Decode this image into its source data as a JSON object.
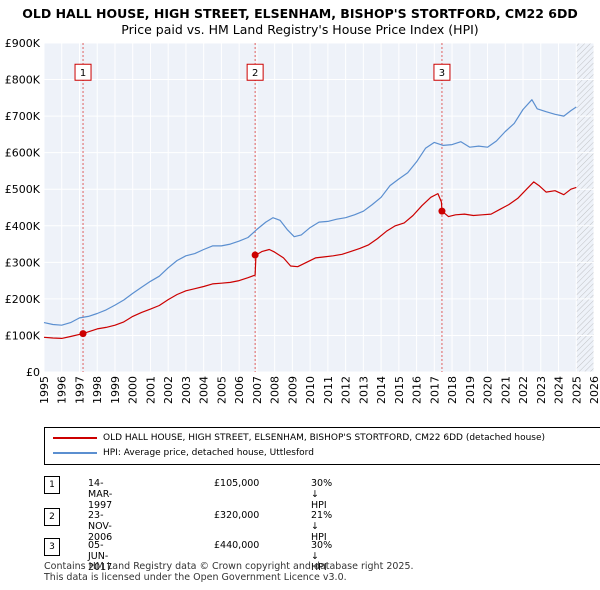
{
  "title_line1": "OLD HALL HOUSE, HIGH STREET, ELSENHAM, BISHOP'S STORTFORD, CM22 6DD",
  "title_line2": "Price paid vs. HM Land Registry's House Price Index (HPI)",
  "colors": {
    "property": "#cc0000",
    "hpi": "#5b8fd0",
    "grid": "#e6e6e6",
    "plot_bg": "#eef2f9",
    "sale_vline": "#e06060"
  },
  "chart_data": {
    "type": "line",
    "title": "Price paid vs. HM Land Registry's House Price Index (HPI)",
    "xlim": [
      1995,
      2026
    ],
    "ylim": [
      0,
      900000
    ],
    "x_ticks": [
      "1995",
      "1996",
      "1997",
      "1998",
      "1999",
      "2000",
      "2001",
      "2002",
      "2003",
      "2004",
      "2005",
      "2006",
      "2007",
      "2008",
      "2009",
      "2010",
      "2011",
      "2012",
      "2013",
      "2014",
      "2015",
      "2016",
      "2017",
      "2018",
      "2019",
      "2020",
      "2021",
      "2022",
      "2023",
      "2024",
      "2025",
      "2026"
    ],
    "y_ticks": [
      {
        "value": 0,
        "label": "£0"
      },
      {
        "value": 100000,
        "label": "£100K"
      },
      {
        "value": 200000,
        "label": "£200K"
      },
      {
        "value": 300000,
        "label": "£300K"
      },
      {
        "value": 400000,
        "label": "£400K"
      },
      {
        "value": 500000,
        "label": "£500K"
      },
      {
        "value": 600000,
        "label": "£600K"
      },
      {
        "value": 700000,
        "label": "£700K"
      },
      {
        "value": 800000,
        "label": "£800K"
      },
      {
        "value": 900000,
        "label": "£900K"
      }
    ],
    "grid": true,
    "series": [
      {
        "name": "OLD HALL HOUSE, HIGH STREET, ELSENHAM, BISHOP'S STORTFORD, CM22 6DD (detached house)",
        "color": "#cc0000",
        "points": [
          [
            1995.0,
            95000
          ],
          [
            1995.5,
            93000
          ],
          [
            1996.0,
            92000
          ],
          [
            1996.5,
            97000
          ],
          [
            1997.2,
            105000
          ],
          [
            1997.5,
            110000
          ],
          [
            1998.0,
            118000
          ],
          [
            1998.5,
            122000
          ],
          [
            1999.0,
            128000
          ],
          [
            1999.5,
            137000
          ],
          [
            2000.0,
            152000
          ],
          [
            2000.5,
            163000
          ],
          [
            2001.0,
            172000
          ],
          [
            2001.5,
            182000
          ],
          [
            2002.0,
            198000
          ],
          [
            2002.5,
            212000
          ],
          [
            2003.0,
            222000
          ],
          [
            2003.5,
            228000
          ],
          [
            2004.0,
            234000
          ],
          [
            2004.5,
            241000
          ],
          [
            2005.0,
            243000
          ],
          [
            2005.5,
            245000
          ],
          [
            2006.0,
            250000
          ],
          [
            2006.5,
            258000
          ],
          [
            2006.9,
            265000
          ],
          [
            2006.95,
            320000
          ],
          [
            2007.3,
            330000
          ],
          [
            2007.7,
            335000
          ],
          [
            2008.0,
            328000
          ],
          [
            2008.5,
            312000
          ],
          [
            2008.9,
            290000
          ],
          [
            2009.3,
            288000
          ],
          [
            2009.8,
            300000
          ],
          [
            2010.3,
            312000
          ],
          [
            2010.8,
            315000
          ],
          [
            2011.3,
            318000
          ],
          [
            2011.8,
            322000
          ],
          [
            2012.3,
            330000
          ],
          [
            2012.8,
            338000
          ],
          [
            2013.3,
            348000
          ],
          [
            2013.8,
            365000
          ],
          [
            2014.3,
            385000
          ],
          [
            2014.8,
            400000
          ],
          [
            2015.3,
            408000
          ],
          [
            2015.8,
            428000
          ],
          [
            2016.3,
            455000
          ],
          [
            2016.8,
            478000
          ],
          [
            2017.2,
            488000
          ],
          [
            2017.4,
            465000
          ],
          [
            2017.43,
            440000
          ],
          [
            2017.8,
            425000
          ],
          [
            2018.2,
            430000
          ],
          [
            2018.7,
            432000
          ],
          [
            2019.2,
            428000
          ],
          [
            2019.7,
            430000
          ],
          [
            2020.2,
            432000
          ],
          [
            2020.7,
            445000
          ],
          [
            2021.2,
            458000
          ],
          [
            2021.7,
            475000
          ],
          [
            2022.2,
            500000
          ],
          [
            2022.6,
            520000
          ],
          [
            2022.9,
            510000
          ],
          [
            2023.3,
            492000
          ],
          [
            2023.8,
            496000
          ],
          [
            2024.3,
            485000
          ],
          [
            2024.7,
            500000
          ],
          [
            2025.0,
            505000
          ]
        ]
      },
      {
        "name": "HPI: Average price, detached house, Uttlesford",
        "color": "#5b8fd0",
        "points": [
          [
            1995.0,
            135000
          ],
          [
            1995.5,
            130000
          ],
          [
            1996.0,
            128000
          ],
          [
            1996.5,
            135000
          ],
          [
            1997.0,
            148000
          ],
          [
            1997.5,
            152000
          ],
          [
            1998.0,
            160000
          ],
          [
            1998.5,
            170000
          ],
          [
            1999.0,
            183000
          ],
          [
            1999.5,
            197000
          ],
          [
            2000.0,
            215000
          ],
          [
            2000.5,
            232000
          ],
          [
            2001.0,
            248000
          ],
          [
            2001.5,
            262000
          ],
          [
            2002.0,
            285000
          ],
          [
            2002.5,
            305000
          ],
          [
            2003.0,
            318000
          ],
          [
            2003.5,
            324000
          ],
          [
            2004.0,
            335000
          ],
          [
            2004.5,
            345000
          ],
          [
            2005.0,
            345000
          ],
          [
            2005.5,
            350000
          ],
          [
            2006.0,
            358000
          ],
          [
            2006.5,
            368000
          ],
          [
            2007.0,
            390000
          ],
          [
            2007.5,
            410000
          ],
          [
            2007.9,
            422000
          ],
          [
            2008.3,
            415000
          ],
          [
            2008.7,
            390000
          ],
          [
            2009.1,
            370000
          ],
          [
            2009.5,
            375000
          ],
          [
            2010.0,
            395000
          ],
          [
            2010.5,
            410000
          ],
          [
            2011.0,
            412000
          ],
          [
            2011.5,
            418000
          ],
          [
            2012.0,
            422000
          ],
          [
            2012.5,
            430000
          ],
          [
            2013.0,
            440000
          ],
          [
            2013.5,
            458000
          ],
          [
            2014.0,
            478000
          ],
          [
            2014.5,
            510000
          ],
          [
            2015.0,
            528000
          ],
          [
            2015.5,
            545000
          ],
          [
            2016.0,
            575000
          ],
          [
            2016.5,
            612000
          ],
          [
            2017.0,
            628000
          ],
          [
            2017.5,
            620000
          ],
          [
            2018.0,
            622000
          ],
          [
            2018.5,
            630000
          ],
          [
            2019.0,
            615000
          ],
          [
            2019.5,
            618000
          ],
          [
            2020.0,
            615000
          ],
          [
            2020.5,
            632000
          ],
          [
            2021.0,
            658000
          ],
          [
            2021.5,
            680000
          ],
          [
            2022.0,
            718000
          ],
          [
            2022.5,
            745000
          ],
          [
            2022.8,
            720000
          ],
          [
            2023.3,
            712000
          ],
          [
            2023.8,
            705000
          ],
          [
            2024.3,
            700000
          ],
          [
            2024.7,
            715000
          ],
          [
            2025.0,
            725000
          ]
        ]
      }
    ],
    "sales": [
      {
        "label": "1",
        "x": 1997.2,
        "price": 105000
      },
      {
        "label": "2",
        "x": 2006.9,
        "price": 320000
      },
      {
        "label": "3",
        "x": 2017.43,
        "price": 440000
      }
    ],
    "future_hatch_from": 2025.0
  },
  "legend": {
    "property_label": "OLD HALL HOUSE, HIGH STREET, ELSENHAM, BISHOP'S STORTFORD, CM22 6DD (detached house)",
    "hpi_label": "HPI: Average price, detached house, Uttlesford"
  },
  "sales_table": [
    {
      "num": "1",
      "date": "14-MAR-1997",
      "price": "£105,000",
      "hpi": "30% ↓ HPI"
    },
    {
      "num": "2",
      "date": "23-NOV-2006",
      "price": "£320,000",
      "hpi": "21% ↓ HPI"
    },
    {
      "num": "3",
      "date": "05-JUN-2017",
      "price": "£440,000",
      "hpi": "30% ↓ HPI"
    }
  ],
  "footer": {
    "line1": "Contains HM Land Registry data © Crown copyright and database right 2025.",
    "line2": "This data is licensed under the Open Government Licence v3.0."
  }
}
